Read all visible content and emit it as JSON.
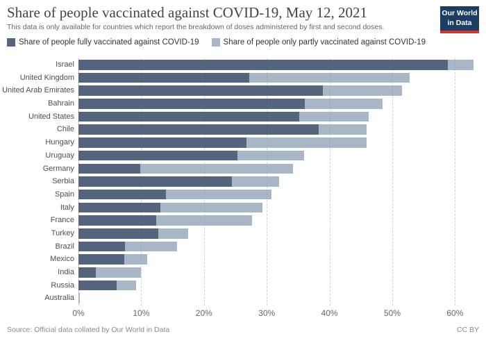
{
  "header": {
    "title": "Share of people vaccinated against COVID-19, May 12, 2021",
    "subtitle": "This data is only available for countries which report the breakdown of doses administered by first and second doses.",
    "logo": {
      "line1": "Our World",
      "line2": "in Data",
      "bg_color": "#1D3D63",
      "accent_color": "#D0362B"
    }
  },
  "legend": [
    {
      "label": "Share of people fully vaccinated against COVID-19",
      "color": "#54657D"
    },
    {
      "label": "Share of people only partly vaccinated against COVID-19",
      "color": "#A8B6C5"
    }
  ],
  "chart_data": {
    "type": "bar",
    "orientation": "horizontal",
    "stacked": true,
    "title": "Share of people vaccinated against COVID-19, May 12, 2021",
    "xlabel": "",
    "ylabel": "",
    "xlim": [
      0,
      64
    ],
    "x_ticks": [
      {
        "value": 0,
        "label": "0%"
      },
      {
        "value": 10,
        "label": "10%"
      },
      {
        "value": 20,
        "label": "20%"
      },
      {
        "value": 30,
        "label": "30%"
      },
      {
        "value": 40,
        "label": "40%"
      },
      {
        "value": 50,
        "label": "50%"
      },
      {
        "value": 60,
        "label": "60%"
      }
    ],
    "grid": "vertical-dashed",
    "legend_position": "top",
    "categories": [
      "Israel",
      "United Kingdom",
      "United Arab Emirates",
      "Bahrain",
      "United States",
      "Chile",
      "Hungary",
      "Uruguay",
      "Germany",
      "Serbia",
      "Spain",
      "Italy",
      "France",
      "Turkey",
      "Brazil",
      "Mexico",
      "India",
      "Russia",
      "Australia"
    ],
    "series": [
      {
        "name": "Share of people fully vaccinated against COVID-19",
        "color": "#54657D",
        "values": [
          58.9,
          27.2,
          38.9,
          36.1,
          35.2,
          38.3,
          26.8,
          25.3,
          9.9,
          24.4,
          13.9,
          13.1,
          12.4,
          12.7,
          7.4,
          7.3,
          2.8,
          6.1,
          0
        ]
      },
      {
        "name": "Share of people only partly vaccinated against COVID-19",
        "color": "#A8B6C5",
        "values": [
          4.0,
          25.6,
          12.7,
          12.3,
          11.0,
          7.6,
          19.1,
          10.7,
          24.3,
          7.6,
          16.8,
          16.2,
          15.2,
          4.8,
          8.3,
          3.7,
          7.2,
          3.1,
          0.2
        ]
      }
    ]
  },
  "footer": {
    "source": "Source: Official data collated by Our World in Data",
    "license": "CC BY"
  }
}
